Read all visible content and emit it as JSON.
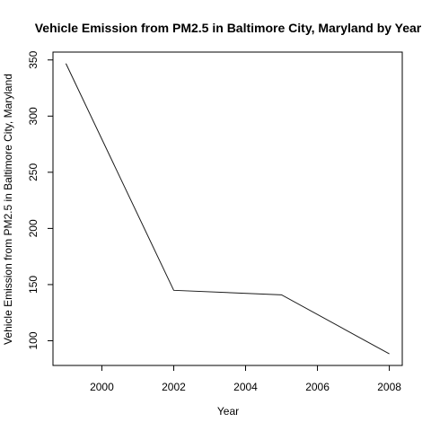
{
  "chart_data": {
    "type": "line",
    "title": "Vehicle Emission from PM2.5 in Baltimore City, Maryland by Year",
    "xlabel": "Year",
    "ylabel": "Vehicle Emission from PM2.5 in Baltimore City, Maryland",
    "x": [
      1999,
      2002,
      2005,
      2008
    ],
    "series": [
      {
        "values": [
          346.8,
          144.9,
          140.9,
          88.3
        ]
      }
    ],
    "xlim": [
      1998.64,
      2008.36
    ],
    "ylim": [
      78,
      357
    ],
    "xticks": [
      2000,
      2002,
      2004,
      2006,
      2008
    ],
    "xtick_labels": [
      "2000",
      "2002",
      "2004",
      "2006",
      "2008"
    ],
    "yticks": [
      100,
      150,
      200,
      250,
      300,
      350
    ],
    "ytick_labels": [
      "100",
      "150",
      "200",
      "250",
      "300",
      "350"
    ],
    "grid": false,
    "legend": "none",
    "line_color": "#1a1a1a"
  }
}
